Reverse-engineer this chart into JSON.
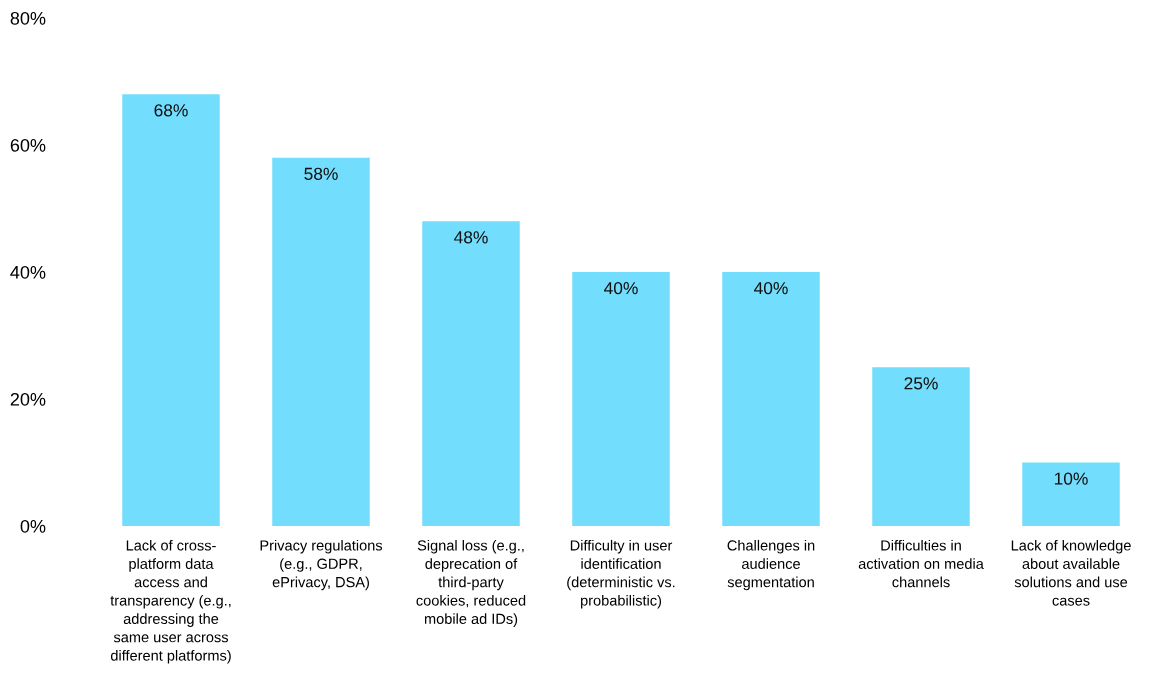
{
  "chart_data": {
    "type": "bar",
    "categories": [
      "Lack of cross-\nplatform data\naccess and\ntransparency (e.g.,\naddressing the\nsame user across\ndifferent platforms)",
      "Privacy regulations\n(e.g., GDPR,\nePrivacy, DSA)",
      "Signal loss (e.g.,\ndeprecation of\nthird-party\ncookies, reduced\nmobile ad IDs)",
      "Difficulty in user\nidentification\n(deterministic vs.\nprobabilistic)",
      "Challenges in\naudience\nsegmentation",
      "Difficulties in\nactivation on media\nchannels",
      "Lack of knowledge\nabout available\nsolutions and use\ncases"
    ],
    "values": [
      68,
      58,
      48,
      40,
      40,
      25,
      10
    ],
    "value_labels": [
      "68%",
      "58%",
      "48%",
      "40%",
      "40%",
      "25%",
      "10%"
    ],
    "color": "#72ddfc",
    "ylim": [
      0,
      80
    ],
    "yticks": [
      {
        "value": 0,
        "label": "0%"
      },
      {
        "value": 20,
        "label": "20%"
      },
      {
        "value": 40,
        "label": "40%"
      },
      {
        "value": 60,
        "label": "60%"
      },
      {
        "value": 80,
        "label": "80%"
      }
    ],
    "grid": false
  }
}
